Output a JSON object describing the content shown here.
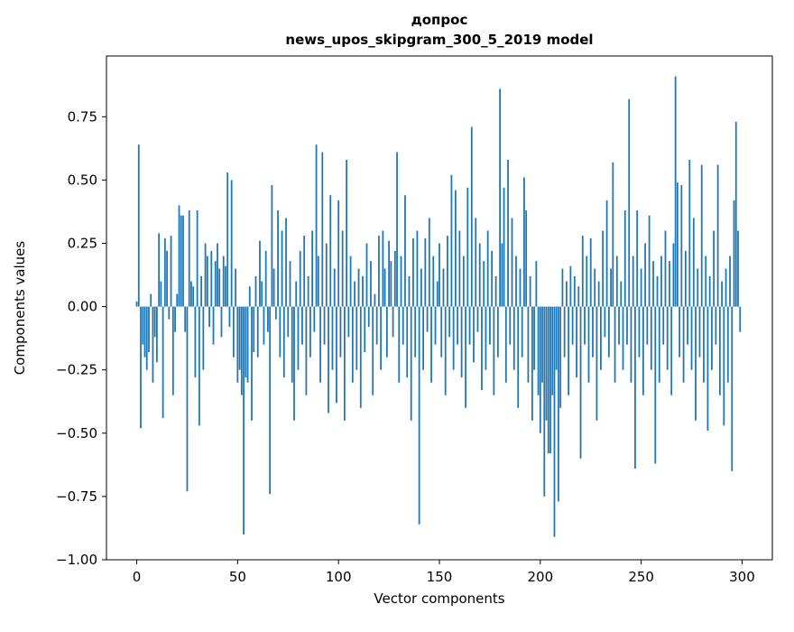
{
  "chart_data": {
    "type": "bar",
    "title": "допрос",
    "subtitle": "news_upos_skipgram_300_5_2019 model",
    "xlabel": "Vector components",
    "ylabel": "Components values",
    "bar_color": "#1f77b4",
    "background_color": "#ffffff",
    "xlim": [
      -15,
      315
    ],
    "ylim": [
      -1.0,
      0.99
    ],
    "xticks": [
      0,
      50,
      100,
      150,
      200,
      250,
      300
    ],
    "xtick_labels": [
      "0",
      "50",
      "100",
      "150",
      "200",
      "250",
      "300"
    ],
    "yticks": [
      -1.0,
      -0.75,
      -0.5,
      -0.25,
      0.0,
      0.25,
      0.5,
      0.75
    ],
    "ytick_labels": [
      "−1.00",
      "−0.75",
      "−0.50",
      "−0.25",
      "0.00",
      "0.25",
      "0.50",
      "0.75"
    ],
    "bar_width": 0.8,
    "values": [
      0.02,
      0.64,
      -0.48,
      -0.15,
      -0.2,
      -0.25,
      -0.18,
      0.05,
      -0.3,
      -0.12,
      -0.22,
      0.29,
      0.1,
      -0.44,
      0.27,
      0.22,
      -0.05,
      0.28,
      -0.35,
      -0.1,
      0.05,
      0.4,
      0.36,
      0.36,
      -0.1,
      -0.73,
      0.38,
      0.1,
      0.08,
      -0.28,
      0.38,
      -0.47,
      0.12,
      -0.25,
      0.25,
      0.2,
      -0.08,
      0.22,
      -0.15,
      0.18,
      0.25,
      0.15,
      -0.12,
      0.2,
      0.16,
      0.53,
      -0.08,
      0.5,
      -0.2,
      0.15,
      -0.3,
      -0.25,
      -0.35,
      -0.9,
      -0.28,
      -0.3,
      0.08,
      -0.45,
      -0.18,
      0.12,
      -0.2,
      0.26,
      0.1,
      -0.15,
      0.22,
      -0.1,
      -0.74,
      0.48,
      0.15,
      -0.05,
      0.38,
      -0.2,
      0.3,
      -0.28,
      0.35,
      -0.12,
      0.18,
      -0.3,
      -0.45,
      0.1,
      -0.25,
      0.22,
      -0.15,
      0.28,
      -0.35,
      0.12,
      -0.2,
      0.3,
      -0.1,
      0.64,
      0.2,
      -0.3,
      0.61,
      -0.15,
      0.25,
      -0.42,
      0.44,
      -0.25,
      0.15,
      -0.38,
      0.42,
      -0.2,
      0.3,
      -0.45,
      0.58,
      -0.12,
      0.2,
      -0.3,
      0.1,
      -0.25,
      0.15,
      -0.4,
      0.12,
      -0.18,
      0.25,
      -0.08,
      0.18,
      -0.35,
      0.05,
      -0.15,
      0.28,
      -0.25,
      0.3,
      0.15,
      -0.2,
      0.26,
      0.18,
      -0.12,
      0.22,
      0.61,
      -0.3,
      0.2,
      -0.15,
      0.44,
      -0.28,
      0.12,
      -0.45,
      0.27,
      -0.2,
      0.3,
      -0.86,
      0.15,
      -0.25,
      0.27,
      -0.1,
      0.35,
      -0.3,
      0.2,
      -0.15,
      0.1,
      0.25,
      -0.2,
      0.15,
      -0.35,
      0.28,
      -0.12,
      0.52,
      -0.25,
      0.46,
      -0.15,
      0.3,
      -0.28,
      0.2,
      -0.4,
      0.47,
      -0.15,
      0.71,
      -0.22,
      0.35,
      -0.1,
      0.25,
      -0.33,
      0.18,
      -0.25,
      0.3,
      -0.15,
      0.22,
      -0.35,
      0.12,
      -0.2,
      0.86,
      0.25,
      0.47,
      -0.3,
      0.58,
      -0.15,
      0.35,
      -0.25,
      0.2,
      -0.4,
      0.15,
      -0.2,
      0.51,
      0.38,
      -0.3,
      0.12,
      -0.45,
      -0.25,
      0.18,
      -0.35,
      -0.5,
      -0.3,
      -0.75,
      -0.45,
      -0.58,
      -0.58,
      -0.35,
      -0.91,
      -0.25,
      -0.77,
      -0.4,
      0.15,
      -0.2,
      0.1,
      -0.35,
      0.16,
      -0.15,
      0.12,
      -0.28,
      0.08,
      -0.6,
      0.28,
      -0.15,
      0.2,
      -0.3,
      0.27,
      -0.2,
      0.15,
      -0.45,
      0.1,
      -0.25,
      0.3,
      -0.12,
      0.42,
      -0.2,
      0.15,
      0.57,
      -0.3,
      0.2,
      -0.15,
      0.1,
      -0.25,
      0.38,
      -0.15,
      0.82,
      -0.3,
      0.2,
      -0.64,
      0.38,
      -0.2,
      0.15,
      -0.35,
      0.25,
      -0.15,
      0.36,
      -0.25,
      0.18,
      -0.62,
      0.12,
      -0.3,
      0.2,
      -0.15,
      0.3,
      -0.25,
      0.18,
      -0.35,
      0.25,
      0.91,
      0.49,
      -0.2,
      0.48,
      -0.3,
      0.22,
      -0.15,
      0.58,
      -0.25,
      0.35,
      -0.45,
      0.15,
      -0.2,
      0.56,
      -0.3,
      0.2,
      -0.49,
      0.12,
      -0.25,
      0.3,
      -0.15,
      0.56,
      -0.35,
      0.1,
      -0.47,
      0.15,
      -0.3,
      0.2,
      -0.65,
      0.42,
      0.73,
      0.3,
      -0.1
    ]
  }
}
